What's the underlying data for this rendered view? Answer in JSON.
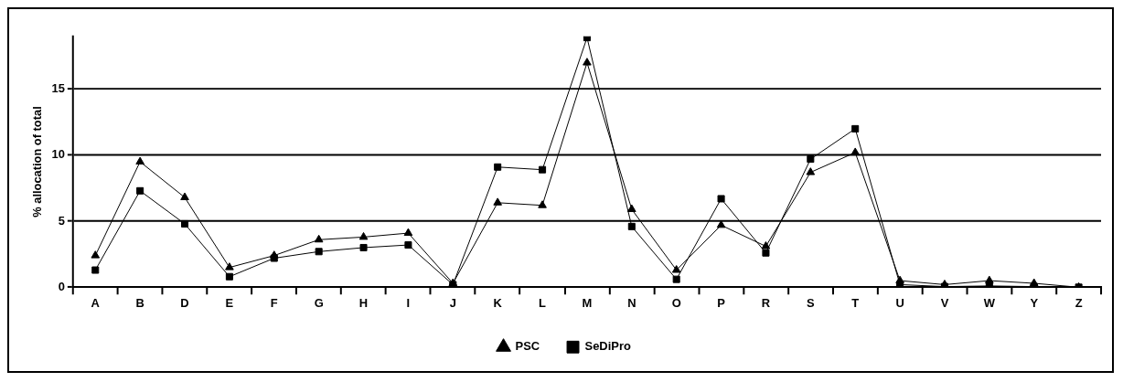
{
  "chart_data": {
    "type": "line",
    "ylabel": "% allocation of total",
    "categories": [
      "A",
      "B",
      "D",
      "E",
      "F",
      "G",
      "H",
      "I",
      "J",
      "K",
      "L",
      "M",
      "N",
      "O",
      "P",
      "R",
      "S",
      "T",
      "U",
      "V",
      "W",
      "Y",
      "Z"
    ],
    "series": [
      {
        "name": "PSC",
        "color": "#000000",
        "marker": "triangle",
        "values": [
          2.4,
          9.5,
          6.8,
          1.5,
          2.4,
          3.6,
          3.8,
          4.1,
          0.3,
          6.4,
          6.2,
          17,
          5.9,
          1.3,
          4.7,
          3.1,
          8.7,
          10.2,
          0.5,
          0.2,
          0.5,
          0.3,
          0
        ]
      },
      {
        "name": "SeDiPro",
        "color": "#000000",
        "marker": "square",
        "values": [
          1.3,
          7.3,
          4.8,
          0.8,
          2.2,
          2.7,
          3.0,
          3.2,
          0.2,
          9.1,
          8.9,
          18.9,
          4.6,
          0.6,
          6.7,
          2.6,
          9.7,
          12,
          0.2,
          0.05,
          0.1,
          0.05,
          0
        ]
      }
    ],
    "ylim": [
      0,
      19
    ],
    "yticks": [
      0,
      5,
      10,
      15
    ],
    "grid": "y",
    "legend": "bottom",
    "line_style": "solid"
  }
}
